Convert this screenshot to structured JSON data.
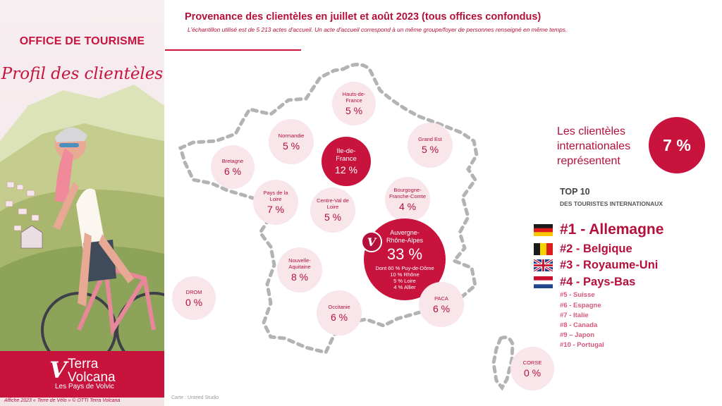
{
  "poster": {
    "office_title": "OFFICE DE TOURISME",
    "subtitle": "Profil des clientèles",
    "brand_initial": "V",
    "brand_line1": "Terra",
    "brand_line2": "Volcana",
    "brand_tagline": "Les Pays de Volvic",
    "credit": "Affiche 2023 « Terre de Vélo » © OTTI Terra Volcana"
  },
  "header": {
    "title": "Provenance des clientèles en juillet et août 2023 (tous offices confondus)",
    "note": "L'échantillon utilisé est de 5 213 actes d'accueil. Un acte d'accueil correspond à un même groupe/foyer de personnes renseigné en même temps."
  },
  "regions": {
    "hauts_de_france": {
      "label": "Hauts-de-France",
      "value": "5 %"
    },
    "normandie": {
      "label": "Normandie",
      "value": "5 %"
    },
    "grand_est": {
      "label": "Grand Est",
      "value": "5 %"
    },
    "bretagne": {
      "label": "Bretagne",
      "value": "6 %"
    },
    "ile_de_france": {
      "label": "Ile-de-France",
      "value": "12 %"
    },
    "pays_de_la_loire": {
      "label": "Pays de la Loire",
      "value": "7 %"
    },
    "centre_val_de_loire": {
      "label": "Centre-Val de Loire",
      "value": "5 %"
    },
    "bourgogne_franche_comte": {
      "label": "Bourgogne-Franche-Comte",
      "value": "4 %"
    },
    "auvergne_rhone_alpes": {
      "label": "Auvergne-Rhône-Alpes",
      "value": "33 %",
      "detail": [
        "Dont 60 % Puy-de-Dôme",
        "10 % Rhône",
        "5 % Loire",
        "4 % Allier"
      ]
    },
    "nouvelle_aquitaine": {
      "label": "Nouvelle-Aquitaine",
      "value": "8 %"
    },
    "drom": {
      "label": "DROM",
      "value": "0 %"
    },
    "occitanie": {
      "label": "Occitanie",
      "value": "6 %"
    },
    "paca": {
      "label": "PACA",
      "value": "6 %"
    },
    "corse": {
      "label": "CORSE",
      "value": "0 %"
    }
  },
  "map_badge": "V",
  "map_credit": "Carte : Unteed Studio",
  "international": {
    "text_lines": [
      "Les clientèles",
      "internationales",
      "représentent"
    ],
    "share": "7 %",
    "top_heading": "TOP 10",
    "top_subheading": "DES TOURISTES INTERNATIONAUX",
    "ranking": [
      "#1 - Allemagne",
      "#2 - Belgique",
      "#3 - Royaume-Uni",
      "#4 - Pays-Bas",
      "#5 - Suisse",
      "#6 - Espagne",
      "#7 - Italie",
      "#8 - Canada",
      "#9 – Japon",
      "#10 - Portugal"
    ]
  },
  "colors": {
    "brand_red": "#c8133d",
    "bubble_pink": "#f8e6ea",
    "dark_red_text": "#b5103b"
  },
  "icons": {
    "flag_1": "germany-flag-icon",
    "flag_2": "belgium-flag-icon",
    "flag_3": "uk-flag-icon",
    "flag_4": "netherlands-flag-icon"
  }
}
